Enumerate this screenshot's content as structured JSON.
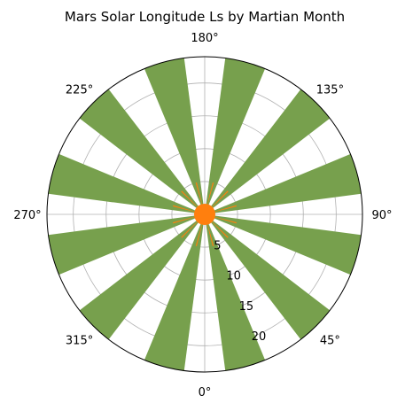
{
  "chart_data": {
    "type": "bar",
    "projection": "polar",
    "title": "Mars Solar Longitude Ls by Martian Month",
    "theta_zero_location": "bottom",
    "theta_direction": "counterclockwise",
    "angle_ticks": [
      "0°",
      "45°",
      "90°",
      "135°",
      "180°",
      "225°",
      "270°",
      "315°"
    ],
    "radial_ticks": [
      "5",
      "10",
      "15",
      "20"
    ],
    "rlim": [
      0,
      24
    ],
    "grid": true,
    "categories": [
      15,
      45,
      75,
      105,
      135,
      165,
      195,
      225,
      255,
      285,
      315,
      345
    ],
    "series": [
      {
        "values": [
          24,
          24,
          24,
          24,
          24,
          24,
          24,
          24,
          24,
          24,
          24,
          24
        ],
        "color": "#77a04d",
        "bar_width_deg": 15
      },
      {
        "values": [
          5,
          5,
          5,
          5,
          5,
          5,
          5,
          5,
          5,
          5,
          5,
          5
        ],
        "color": "#ff7f0e",
        "bar_width_deg": 2
      }
    ],
    "center_marker": {
      "value": 0,
      "color": "#ff7f0e"
    }
  }
}
